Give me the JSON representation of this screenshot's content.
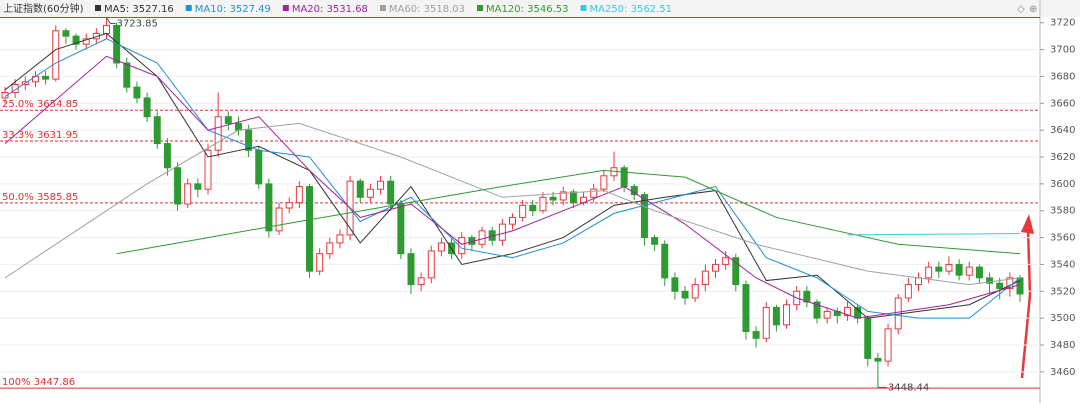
{
  "chart_data": {
    "type": "candlestick",
    "title": "上证指数(60分钟)",
    "ylim": [
      3445,
      3725
    ],
    "yticks": [
      3460,
      3480,
      3500,
      3520,
      3540,
      3560,
      3580,
      3600,
      3620,
      3640,
      3660,
      3680,
      3700,
      3720
    ],
    "up_color": "#e8383d",
    "down_color": "#2e9b32",
    "open": [
      3664,
      3668,
      3674,
      3676,
      3680,
      3678,
      3714,
      3710,
      3704,
      3708,
      3712,
      3718,
      3690,
      3672,
      3664,
      3650,
      3630,
      3612,
      3585,
      3600,
      3596,
      3625,
      3650,
      3645,
      3640,
      3625,
      3600,
      3565,
      3582,
      3586,
      3598,
      3535,
      3548,
      3556,
      3562,
      3602,
      3590,
      3596,
      3602,
      3585,
      3548,
      3525,
      3530,
      3550,
      3556,
      3548,
      3560,
      3555,
      3565,
      3558,
      3570,
      3575,
      3584,
      3580,
      3590,
      3588,
      3594,
      3586,
      3590,
      3596,
      3606,
      3612,
      3598,
      3592,
      3560,
      3555,
      3530,
      3520,
      3515,
      3525,
      3535,
      3540,
      3545,
      3525,
      3490,
      3485,
      3508,
      3495,
      3510,
      3520,
      3512,
      3500,
      3505,
      3502,
      3508,
      3500,
      3470,
      3468,
      3492,
      3515,
      3525,
      3530,
      3538,
      3535,
      3540,
      3532,
      3538,
      3530,
      3526,
      3522,
      3530
    ],
    "close": [
      3668,
      3674,
      3676,
      3680,
      3678,
      3714,
      3710,
      3704,
      3708,
      3712,
      3718,
      3690,
      3672,
      3664,
      3650,
      3630,
      3612,
      3585,
      3600,
      3596,
      3625,
      3650,
      3645,
      3640,
      3625,
      3600,
      3565,
      3582,
      3586,
      3598,
      3535,
      3548,
      3556,
      3562,
      3602,
      3590,
      3596,
      3602,
      3585,
      3548,
      3525,
      3530,
      3550,
      3556,
      3548,
      3560,
      3555,
      3565,
      3558,
      3570,
      3575,
      3584,
      3580,
      3590,
      3588,
      3594,
      3586,
      3590,
      3596,
      3606,
      3612,
      3598,
      3592,
      3560,
      3555,
      3530,
      3520,
      3515,
      3525,
      3535,
      3540,
      3545,
      3525,
      3490,
      3485,
      3508,
      3495,
      3510,
      3520,
      3512,
      3500,
      3505,
      3502,
      3508,
      3500,
      3470,
      3468,
      3492,
      3515,
      3525,
      3530,
      3538,
      3535,
      3540,
      3532,
      3538,
      3530,
      3526,
      3522,
      3530,
      3518
    ],
    "high": [
      3672,
      3678,
      3680,
      3684,
      3684,
      3718,
      3716,
      3712,
      3712,
      3716,
      3723.85,
      3720,
      3694,
      3676,
      3668,
      3654,
      3634,
      3616,
      3604,
      3604,
      3630,
      3668,
      3654,
      3650,
      3644,
      3628,
      3604,
      3586,
      3590,
      3602,
      3600,
      3552,
      3560,
      3566,
      3606,
      3604,
      3600,
      3606,
      3606,
      3588,
      3552,
      3534,
      3554,
      3560,
      3560,
      3564,
      3562,
      3568,
      3568,
      3574,
      3578,
      3588,
      3588,
      3594,
      3594,
      3598,
      3596,
      3594,
      3600,
      3610,
      3624,
      3614,
      3600,
      3594,
      3562,
      3558,
      3534,
      3524,
      3530,
      3540,
      3544,
      3550,
      3548,
      3528,
      3494,
      3512,
      3510,
      3514,
      3524,
      3524,
      3514,
      3508,
      3508,
      3512,
      3510,
      3502,
      3474,
      3496,
      3518,
      3530,
      3534,
      3542,
      3542,
      3546,
      3544,
      3542,
      3540,
      3534,
      3530,
      3534,
      3532
    ],
    "low": [
      3660,
      3664,
      3670,
      3672,
      3674,
      3676,
      3704,
      3700,
      3700,
      3704,
      3708,
      3686,
      3668,
      3660,
      3646,
      3626,
      3606,
      3580,
      3582,
      3590,
      3592,
      3620,
      3640,
      3636,
      3620,
      3596,
      3560,
      3562,
      3578,
      3582,
      3530,
      3532,
      3544,
      3552,
      3558,
      3586,
      3586,
      3592,
      3580,
      3544,
      3518,
      3520,
      3526,
      3546,
      3544,
      3544,
      3550,
      3552,
      3554,
      3554,
      3566,
      3572,
      3576,
      3578,
      3584,
      3584,
      3582,
      3584,
      3586,
      3594,
      3602,
      3594,
      3588,
      3554,
      3550,
      3524,
      3514,
      3510,
      3512,
      3520,
      3530,
      3536,
      3520,
      3484,
      3478,
      3482,
      3490,
      3492,
      3506,
      3508,
      3496,
      3496,
      3496,
      3498,
      3496,
      3464,
      3448.44,
      3464,
      3488,
      3512,
      3520,
      3526,
      3530,
      3532,
      3528,
      3528,
      3526,
      3518,
      3514,
      3516,
      3512
    ],
    "series": [
      {
        "name": "MA5: 3527.16",
        "color": "#333333",
        "x": [
          0,
          5,
          10,
          15,
          20,
          25,
          30,
          35,
          40,
          45,
          50,
          55,
          60,
          65,
          70,
          75,
          80,
          85,
          90,
          95,
          100
        ],
        "values": [
          3670,
          3700,
          3712,
          3680,
          3620,
          3628,
          3610,
          3556,
          3598,
          3540,
          3548,
          3560,
          3584,
          3590,
          3595,
          3528,
          3532,
          3500,
          3505,
          3510,
          3528
        ]
      },
      {
        "name": "MA10: 3527.49",
        "color": "#1f8fd6",
        "x": [
          0,
          5,
          10,
          15,
          20,
          25,
          30,
          35,
          40,
          45,
          50,
          55,
          60,
          65,
          70,
          75,
          80,
          85,
          90,
          95,
          100
        ],
        "values": [
          3665,
          3690,
          3708,
          3690,
          3640,
          3625,
          3620,
          3572,
          3590,
          3552,
          3545,
          3556,
          3578,
          3588,
          3598,
          3545,
          3530,
          3505,
          3500,
          3500,
          3530
        ]
      },
      {
        "name": "MA20: 3531.68",
        "color": "#a0229e",
        "x": [
          0,
          10,
          15,
          20,
          25,
          30,
          35,
          40,
          45,
          50,
          55,
          61,
          67,
          74,
          78,
          84,
          93,
          100
        ],
        "values": [
          3630,
          3695,
          3680,
          3640,
          3650,
          3610,
          3575,
          3585,
          3555,
          3565,
          3580,
          3598,
          3570,
          3530,
          3515,
          3500,
          3510,
          3525
        ]
      },
      {
        "name": "MA60: 3518.03",
        "color": "#a0a0a0",
        "x": [
          0,
          14,
          23,
          29,
          39,
          49,
          59,
          64,
          74,
          85,
          95,
          100
        ],
        "values": [
          3530,
          3600,
          3640,
          3645,
          3620,
          3590,
          3595,
          3580,
          3555,
          3535,
          3525,
          3530
        ]
      },
      {
        "name": "MA120: 3546.53",
        "color": "#2e9a2e",
        "x": [
          11,
          20,
          29,
          39,
          49,
          59,
          67,
          76,
          88,
          100
        ],
        "values": [
          3548,
          3560,
          3572,
          3585,
          3598,
          3610,
          3605,
          3575,
          3555,
          3548
        ]
      },
      {
        "name": "MA250: 3562.51",
        "color": "#3cc8e0",
        "x": [
          83,
          100
        ],
        "values": [
          3562,
          3563
        ]
      }
    ],
    "levels": [
      {
        "label": "25.0% 3654.85",
        "value": 3654.85
      },
      {
        "label": "33.3% 3631.95",
        "value": 3631.95
      },
      {
        "label": "50.0% 3585.85",
        "value": 3585.85
      },
      {
        "label": "100% 3447.86",
        "value": 3447.86
      }
    ],
    "high_annotation": {
      "label": "3723.85",
      "value": 3723.85,
      "index": 10
    },
    "low_annotation": {
      "label": "3448.44",
      "value": 3448.44,
      "index": 86
    }
  }
}
